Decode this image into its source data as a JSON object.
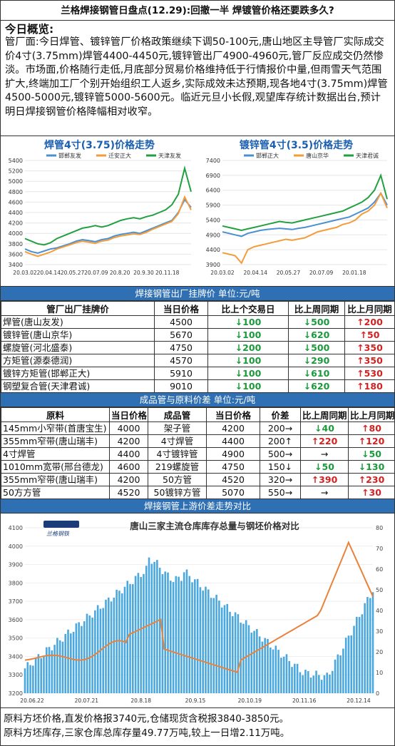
{
  "header": {
    "title": "兰格焊接钢管日盘点(12.29):回撤一半 焊镀管价格还要跌多久?"
  },
  "intro": {
    "heading": "今日概览:",
    "body": "管厂面:今日焊管、镀锌管厂价格政策继续下调50-100元,唐山地区主导管厂实际成交价4寸(3.75mm)焊管4400-4450元,镀锌管出厂4900-4960元,管厂反应成交仍然惨淡。市场面,价格随行走低,月底部分贸易价格维持低于行情报价中量,但雨雪天气范围扩大,终端加工厂个别开始组织工人返乡,实际成效未达预期,现各地4寸(3.75mm)焊管4500-5000元,镀锌管5000-5600元。临近元旦小长假,观望库存统计数据出台,预计明日焊接钢管价格降幅相对收窄。"
  },
  "chart_data": [
    {
      "type": "line",
      "title": "焊管4寸(3.75)价格走势",
      "ylim": [
        3400,
        5400
      ],
      "yticks": [
        3400,
        3600,
        3800,
        4000,
        4200,
        4400,
        4600,
        4800,
        5000,
        5200,
        5400
      ],
      "xticks": [
        "20.03.02",
        "20.04.14",
        "20.05.27",
        "20.07.09",
        "20.8.20",
        "20.9.30",
        "20.11.18",
        ""
      ],
      "series": [
        {
          "name": "邯郸友发",
          "color": "#4a90d0",
          "values": [
            3700,
            3650,
            3620,
            3660,
            3700,
            3720,
            3760,
            3800,
            3850,
            3880,
            3860,
            3840,
            3880,
            3900,
            3950,
            3980,
            4000,
            4020,
            4000,
            4050,
            4100,
            4150,
            4200,
            4250,
            4400,
            4650,
            4500
          ]
        },
        {
          "name": "迁安正大",
          "color": "#f39c3c",
          "values": [
            3650,
            3600,
            3560,
            3600,
            3640,
            3700,
            3740,
            3780,
            3820,
            3850,
            3830,
            3810,
            3850,
            3870,
            3920,
            3950,
            3970,
            3990,
            3980,
            4020,
            4080,
            4130,
            4180,
            4230,
            4380,
            4700,
            4450
          ]
        },
        {
          "name": "天津友发",
          "color": "#22a040",
          "values": [
            3900,
            3850,
            3800,
            3780,
            3820,
            3900,
            3950,
            4000,
            4050,
            4100,
            4120,
            4150,
            4120,
            4150,
            4200,
            4250,
            4280,
            4300,
            4280,
            4320,
            4350,
            4400,
            4450,
            4550,
            4750,
            5250,
            4800
          ]
        }
      ]
    },
    {
      "type": "line",
      "title": "镀锌管4寸(3.5)价格走势",
      "ylim": [
        3900,
        7400
      ],
      "yticks": [
        3900,
        4400,
        4900,
        5400,
        5900,
        6400,
        6900,
        7400
      ],
      "xticks": [
        "20.03.02",
        "20.04.14",
        "20.05.27",
        "20.07.09",
        "20.01.18",
        ""
      ],
      "series": [
        {
          "name": "邯郸正大",
          "color": "#4a90d0",
          "values": [
            5000,
            4950,
            4900,
            4850,
            4950,
            5000,
            5050,
            5080,
            5100,
            5120,
            5100,
            5080,
            5120,
            5150,
            5200,
            5250,
            5300,
            5350,
            5400,
            5450,
            5500,
            5600,
            5700,
            5800,
            6000,
            6300,
            5900
          ]
        },
        {
          "name": "唐山京华",
          "color": "#f39c3c",
          "values": [
            4300,
            4250,
            4200,
            3950,
            4400,
            4500,
            4550,
            4600,
            4650,
            4700,
            4750,
            4720,
            4760,
            4800,
            4900,
            5000,
            5050,
            5100,
            5150,
            5250,
            5300,
            5400,
            5600,
            5700,
            5900,
            6300,
            5800
          ]
        },
        {
          "name": "天津君诚",
          "color": "#22a040",
          "values": [
            5200,
            5150,
            5100,
            5050,
            5100,
            5150,
            5200,
            5250,
            5300,
            5350,
            5320,
            5300,
            5350,
            5400,
            5450,
            5500,
            5550,
            5600,
            5650,
            5700,
            5800,
            5900,
            6000,
            6150,
            6400,
            6900,
            6100
          ]
        }
      ]
    },
    {
      "type": "bar+line",
      "title": "唐山三家主流仓库库存总量与钢坯价格对比",
      "ylim": [
        3200,
        4100
      ],
      "y2lim": [
        0,
        80
      ],
      "yticks": [
        3200,
        3300,
        3400,
        3500,
        3600,
        3700,
        3800,
        3900,
        4000,
        4100
      ],
      "y2ticks": [
        0,
        10,
        20,
        30,
        40,
        50,
        60,
        70,
        80
      ],
      "xticks": [
        "20.06.22",
        "20.07.21",
        "20.8.18",
        "20.9.15",
        "20.10.19",
        "20.11.16",
        "20.12.14"
      ]
    }
  ],
  "logo": {
    "text": "兰格钢铁"
  },
  "table1": {
    "band": "焊接钢管出厂挂牌价    单位:元/吨",
    "headers": [
      "管厂出厂挂牌价",
      "当日价格",
      "比上个交易日",
      "比上周同期",
      "比上月同期"
    ],
    "rows": [
      {
        "name": "焊管(唐山友发)",
        "price": "4500",
        "d": "↓100",
        "w": "↓500",
        "m": "↑200",
        "mc": "r"
      },
      {
        "name": "镀锌管(唐山京华)",
        "price": "5670",
        "d": "↓100",
        "w": "↓620",
        "m": "↑50",
        "mc": "r"
      },
      {
        "name": "螺旋管(河北盛泰)",
        "price": "4750",
        "d": "↓200",
        "w": "↓500",
        "m": "↑350",
        "mc": "r"
      },
      {
        "name": "方矩管(源泰德润)",
        "price": "4570",
        "d": "↓100",
        "w": "↓290",
        "m": "↑350",
        "mc": "r"
      },
      {
        "name": "镀锌方矩管(邯郸正大)",
        "price": "5910",
        "d": "↓100",
        "w": "↓610",
        "m": "↑530",
        "mc": "r"
      },
      {
        "name": "钢塑复合管(天津君诚)",
        "price": "9010",
        "d": "↓100",
        "w": "↓620",
        "m": "↑180",
        "mc": "r"
      }
    ]
  },
  "table2": {
    "band": "成品管与原料价差    单位:元/吨",
    "headers": [
      "原料",
      "当日价格",
      "成品管",
      "当日价格",
      "价差",
      "比上周同期",
      "比上月同期"
    ],
    "rows": [
      {
        "raw": "145mm小窄带(首唐宝生)",
        "rp": "4000",
        "prod": "架子管",
        "pp": "4200",
        "diff": "200→",
        "w": "↓40",
        "wc": "g",
        "m": "↑80",
        "mc": "r"
      },
      {
        "raw": "355mm窄带(唐山瑞丰)",
        "rp": "4200",
        "prod": "4寸焊管",
        "pp": "4400",
        "diff": "200↑",
        "w": "↑220",
        "wc": "r",
        "m": "↑120",
        "mc": "r"
      },
      {
        "raw": "4寸焊管",
        "rp": "4400",
        "prod": "4寸镀锌管",
        "pp": "4900",
        "diff": "500→",
        "w": "→",
        "wc": "",
        "m": "↓50",
        "mc": "g"
      },
      {
        "raw": "1010mm宽带(邢台德龙)",
        "rp": "4600",
        "prod": "219螺旋管",
        "pp": "4750",
        "diff": "150↓",
        "w": "↓50",
        "wc": "g",
        "m": "↓130",
        "mc": "g"
      },
      {
        "raw": "355mm窄带(唐山瑞丰)",
        "rp": "4200",
        "prod": "50方管",
        "pp": "4520",
        "diff": "320→",
        "w": "↑390",
        "wc": "r",
        "m": "↑230",
        "mc": "r"
      },
      {
        "raw": "50方方管",
        "rp": "4520",
        "prod": "50镀锌方管",
        "pp": "5070",
        "diff": "550→",
        "w": "→",
        "wc": "",
        "m": "↑30",
        "mc": "r"
      }
    ]
  },
  "band3": "焊接钢管上游价差走势对比",
  "footer": {
    "line1": "原料方坯价格,直发价格报3740元,仓储现货含税报3840-3850元。",
    "line2": "原料方坯库存,三家仓库总库存量49.77万吨,较上一日增2.11万吨。"
  },
  "colors": {
    "band": "#2f6fb3",
    "bars": "#4aa8de",
    "line": "#e9823a",
    "down": "#1a9a3a",
    "up": "#d52020"
  }
}
